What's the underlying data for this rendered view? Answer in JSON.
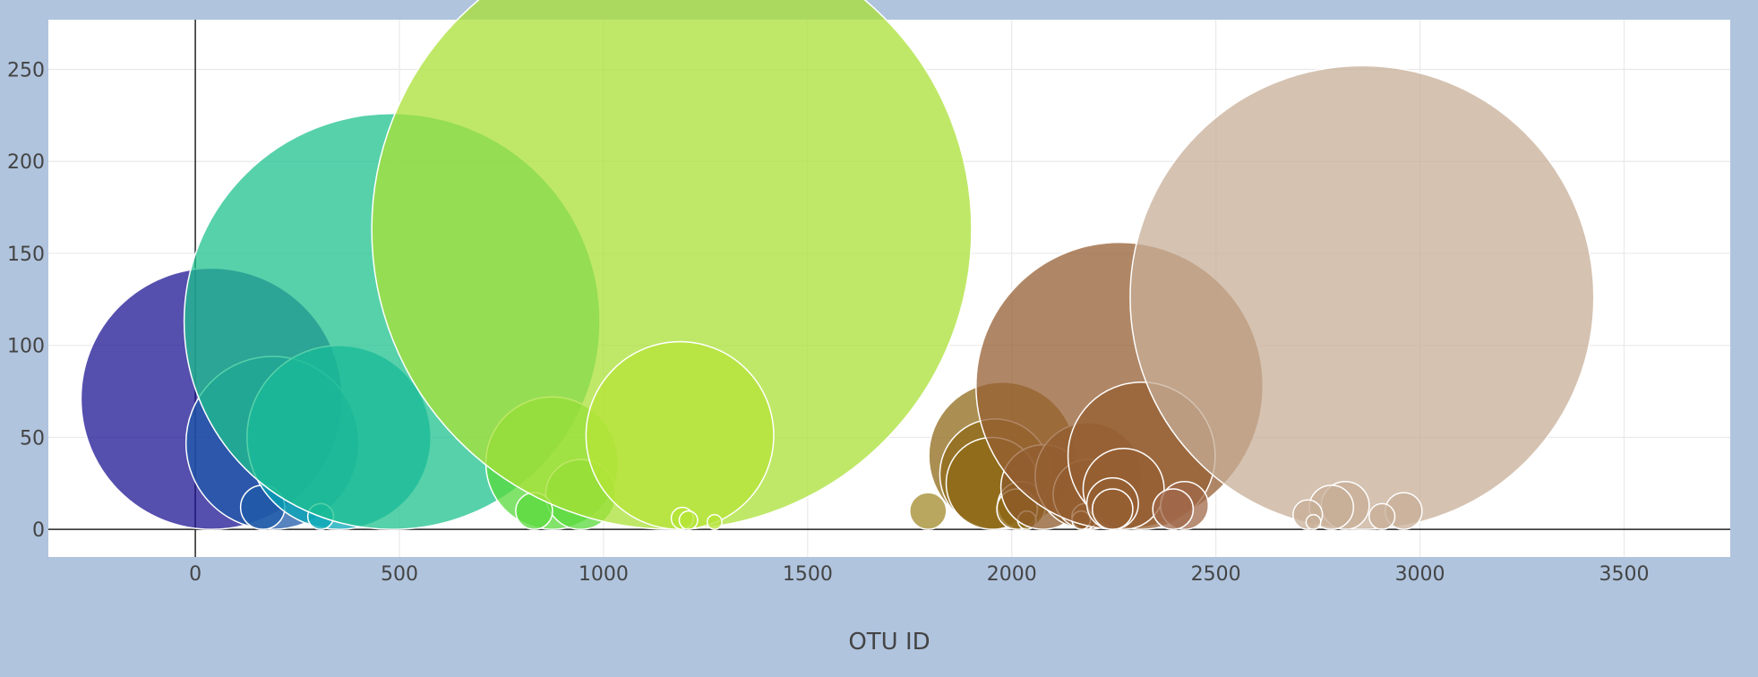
{
  "chart_data": {
    "type": "scatter",
    "subtype": "bubble",
    "title": "",
    "xlabel": "OTU ID",
    "ylabel": "",
    "xlim": [
      -360,
      3760
    ],
    "ylim": [
      -15,
      277
    ],
    "x_ticks": [
      0,
      500,
      1000,
      1500,
      2000,
      2500,
      3000,
      3500
    ],
    "y_ticks": [
      0,
      50,
      100,
      150,
      200,
      250
    ],
    "grid": true,
    "legend": "none",
    "colors": {
      "background": "#b0c4de",
      "plot_background": "#ffffff",
      "grid": "#e9e9e9",
      "axis_zero": "#222222"
    },
    "series": [
      {
        "points": [
          {
            "x": 40,
            "y": 71,
            "size": 71,
            "color": "#1c1493"
          },
          {
            "x": 189,
            "y": 47,
            "size": 47,
            "color": "#1f5aa8"
          },
          {
            "x": 165,
            "y": 12,
            "size": 12,
            "color": "#1f5aa8"
          },
          {
            "x": 352,
            "y": 50,
            "size": 50,
            "color": "#07a7b6"
          },
          {
            "x": 307,
            "y": 7,
            "size": 7,
            "color": "#07a7b6"
          },
          {
            "x": 482,
            "y": 113,
            "size": 113,
            "color": "#1fc28e"
          },
          {
            "x": 874,
            "y": 36,
            "size": 36,
            "color": "#58d93b"
          },
          {
            "x": 944,
            "y": 19,
            "size": 19,
            "color": "#58d93b"
          },
          {
            "x": 830,
            "y": 10,
            "size": 10,
            "color": "#58d93b"
          },
          {
            "x": 1167,
            "y": 163,
            "size": 163,
            "color": "#a9e035"
          },
          {
            "x": 1187,
            "y": 51,
            "size": 51,
            "color": "#b5e437"
          },
          {
            "x": 1193,
            "y": 6,
            "size": 6,
            "color": "#b5e437"
          },
          {
            "x": 1208,
            "y": 5,
            "size": 5,
            "color": "#b5e437"
          },
          {
            "x": 1272,
            "y": 4,
            "size": 4,
            "color": "#b5e437"
          },
          {
            "x": 1795,
            "y": 10,
            "size": 10,
            "color": "#a28a2a"
          },
          {
            "x": 1977,
            "y": 40,
            "size": 40,
            "color": "#8f6a18"
          },
          {
            "x": 1959,
            "y": 30,
            "size": 30,
            "color": "#8f6a18"
          },
          {
            "x": 1952,
            "y": 25,
            "size": 25,
            "color": "#8f6a18"
          },
          {
            "x": 2024,
            "y": 13,
            "size": 13,
            "color": "#8f6a18"
          },
          {
            "x": 2013,
            "y": 11,
            "size": 11,
            "color": "#8f6a18"
          },
          {
            "x": 2037,
            "y": 5,
            "size": 5,
            "color": "#8f6a18"
          },
          {
            "x": 2077,
            "y": 23,
            "size": 23,
            "color": "#8c5a2a"
          },
          {
            "x": 2188,
            "y": 29,
            "size": 29,
            "color": "#8c5a2a"
          },
          {
            "x": 2187,
            "y": 19,
            "size": 19,
            "color": "#8c5a2a"
          },
          {
            "x": 2179,
            "y": 7,
            "size": 7,
            "color": "#8c5a2a"
          },
          {
            "x": 2170,
            "y": 5,
            "size": 5,
            "color": "#8c5a2a"
          },
          {
            "x": 2264,
            "y": 78,
            "size": 78,
            "color": "#955f33"
          },
          {
            "x": 2318,
            "y": 40,
            "size": 40,
            "color": "#955f33"
          },
          {
            "x": 2274,
            "y": 22,
            "size": 22,
            "color": "#955f33"
          },
          {
            "x": 2247,
            "y": 14,
            "size": 14,
            "color": "#955f33"
          },
          {
            "x": 2247,
            "y": 11,
            "size": 11,
            "color": "#955f33"
          },
          {
            "x": 2423,
            "y": 13,
            "size": 13,
            "color": "#a0684a"
          },
          {
            "x": 2395,
            "y": 11,
            "size": 11,
            "color": "#a0684a"
          },
          {
            "x": 2858,
            "y": 126,
            "size": 126,
            "color": "#c7ad97"
          },
          {
            "x": 2817,
            "y": 13,
            "size": 13,
            "color": "#c7ad97"
          },
          {
            "x": 2783,
            "y": 12,
            "size": 12,
            "color": "#c7ad97"
          },
          {
            "x": 2725,
            "y": 8,
            "size": 8,
            "color": "#c7ad97"
          },
          {
            "x": 2739,
            "y": 4,
            "size": 4,
            "color": "#c7ad97"
          },
          {
            "x": 2960,
            "y": 10,
            "size": 10,
            "color": "#c7ad97"
          },
          {
            "x": 2907,
            "y": 7,
            "size": 7,
            "color": "#c7ad97"
          }
        ]
      }
    ]
  }
}
